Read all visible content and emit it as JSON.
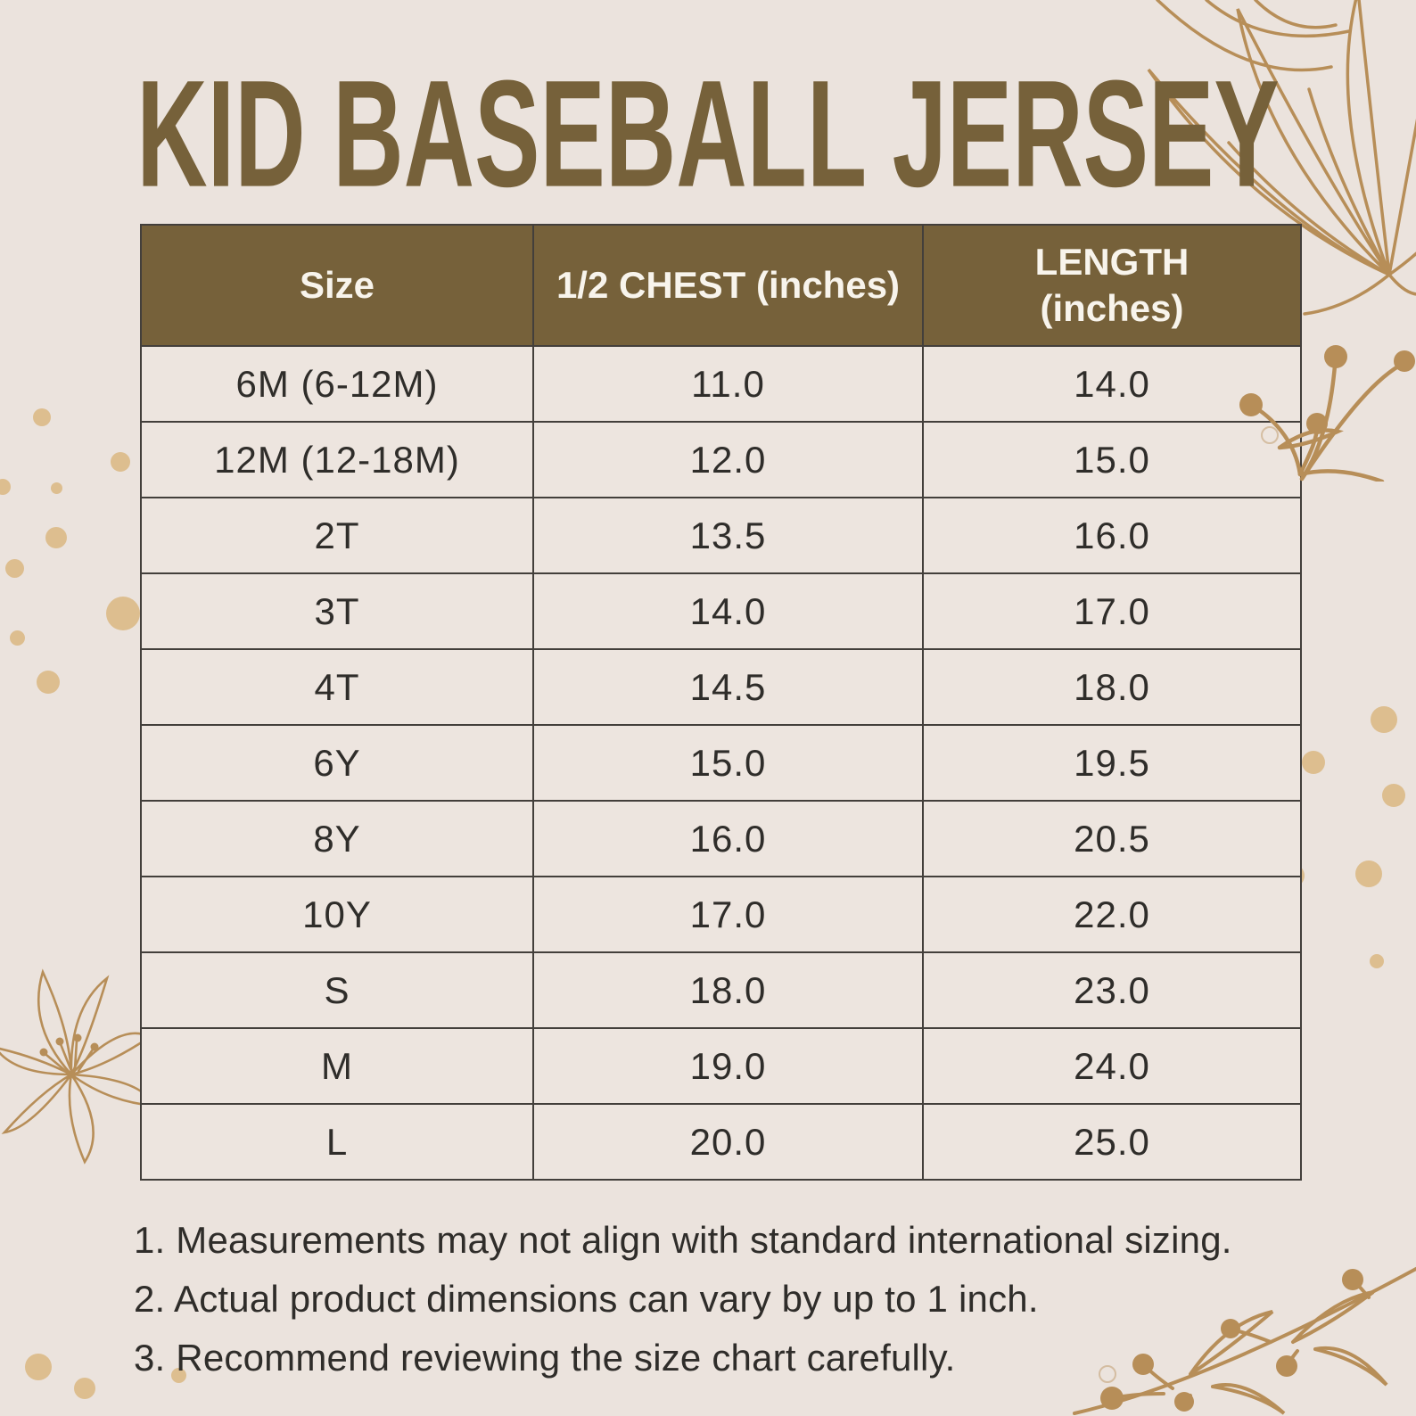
{
  "title": "KID BASEBALL JERSEY",
  "table": {
    "columns": [
      "Size",
      "1/2 CHEST (inches)",
      "LENGTH\n(inches)"
    ],
    "rows": [
      {
        "size": "6M (6-12M)",
        "chest": "11.0",
        "length": "14.0"
      },
      {
        "size": "12M (12-18M)",
        "chest": "12.0",
        "length": "15.0"
      },
      {
        "size": "2T",
        "chest": "13.5",
        "length": "16.0"
      },
      {
        "size": "3T",
        "chest": "14.0",
        "length": "17.0"
      },
      {
        "size": "4T",
        "chest": "14.5",
        "length": "18.0"
      },
      {
        "size": "6Y",
        "chest": "15.0",
        "length": "19.5"
      },
      {
        "size": "8Y",
        "chest": "16.0",
        "length": "20.5"
      },
      {
        "size": "10Y",
        "chest": "17.0",
        "length": "22.0"
      },
      {
        "size": "S",
        "chest": "18.0",
        "length": "23.0"
      },
      {
        "size": "M",
        "chest": "19.0",
        "length": "24.0"
      },
      {
        "size": "L",
        "chest": "20.0",
        "length": "25.0"
      }
    ]
  },
  "notes": [
    "1. Measurements may not align with standard international sizing.",
    "2. Actual product dimensions can vary by up to 1 inch.",
    "3. Recommend reviewing the size chart carefully."
  ],
  "chart_data": {
    "type": "table",
    "title": "KID BASEBALL JERSEY",
    "columns": [
      "Size",
      "1/2 CHEST (inches)",
      "LENGTH (inches)"
    ],
    "rows": [
      [
        "6M (6-12M)",
        11.0,
        14.0
      ],
      [
        "12M (12-18M)",
        12.0,
        15.0
      ],
      [
        "2T",
        13.5,
        16.0
      ],
      [
        "3T",
        14.0,
        17.0
      ],
      [
        "4T",
        14.5,
        18.0
      ],
      [
        "6Y",
        15.0,
        19.5
      ],
      [
        "8Y",
        16.0,
        20.5
      ],
      [
        "10Y",
        17.0,
        22.0
      ],
      [
        "S",
        18.0,
        23.0
      ],
      [
        "M",
        19.0,
        24.0
      ],
      [
        "L",
        20.0,
        25.0
      ]
    ]
  },
  "colors": {
    "bg": "#EBE3DD",
    "brown": "#76613A",
    "tan": "#DDBE8F",
    "line": "#B78E58",
    "ink": "#2F2D2A",
    "border": "#433F3B",
    "cell": "#EDE5DF",
    "header_text": "#F8F4EC"
  },
  "decorations": {
    "top_right": "flower-line-art",
    "top_right_sprig": "berry-sprig-line-art",
    "bottom_left": "flower-line-art",
    "bottom_right": "branch-line-art",
    "scatter": "tan-dots"
  }
}
